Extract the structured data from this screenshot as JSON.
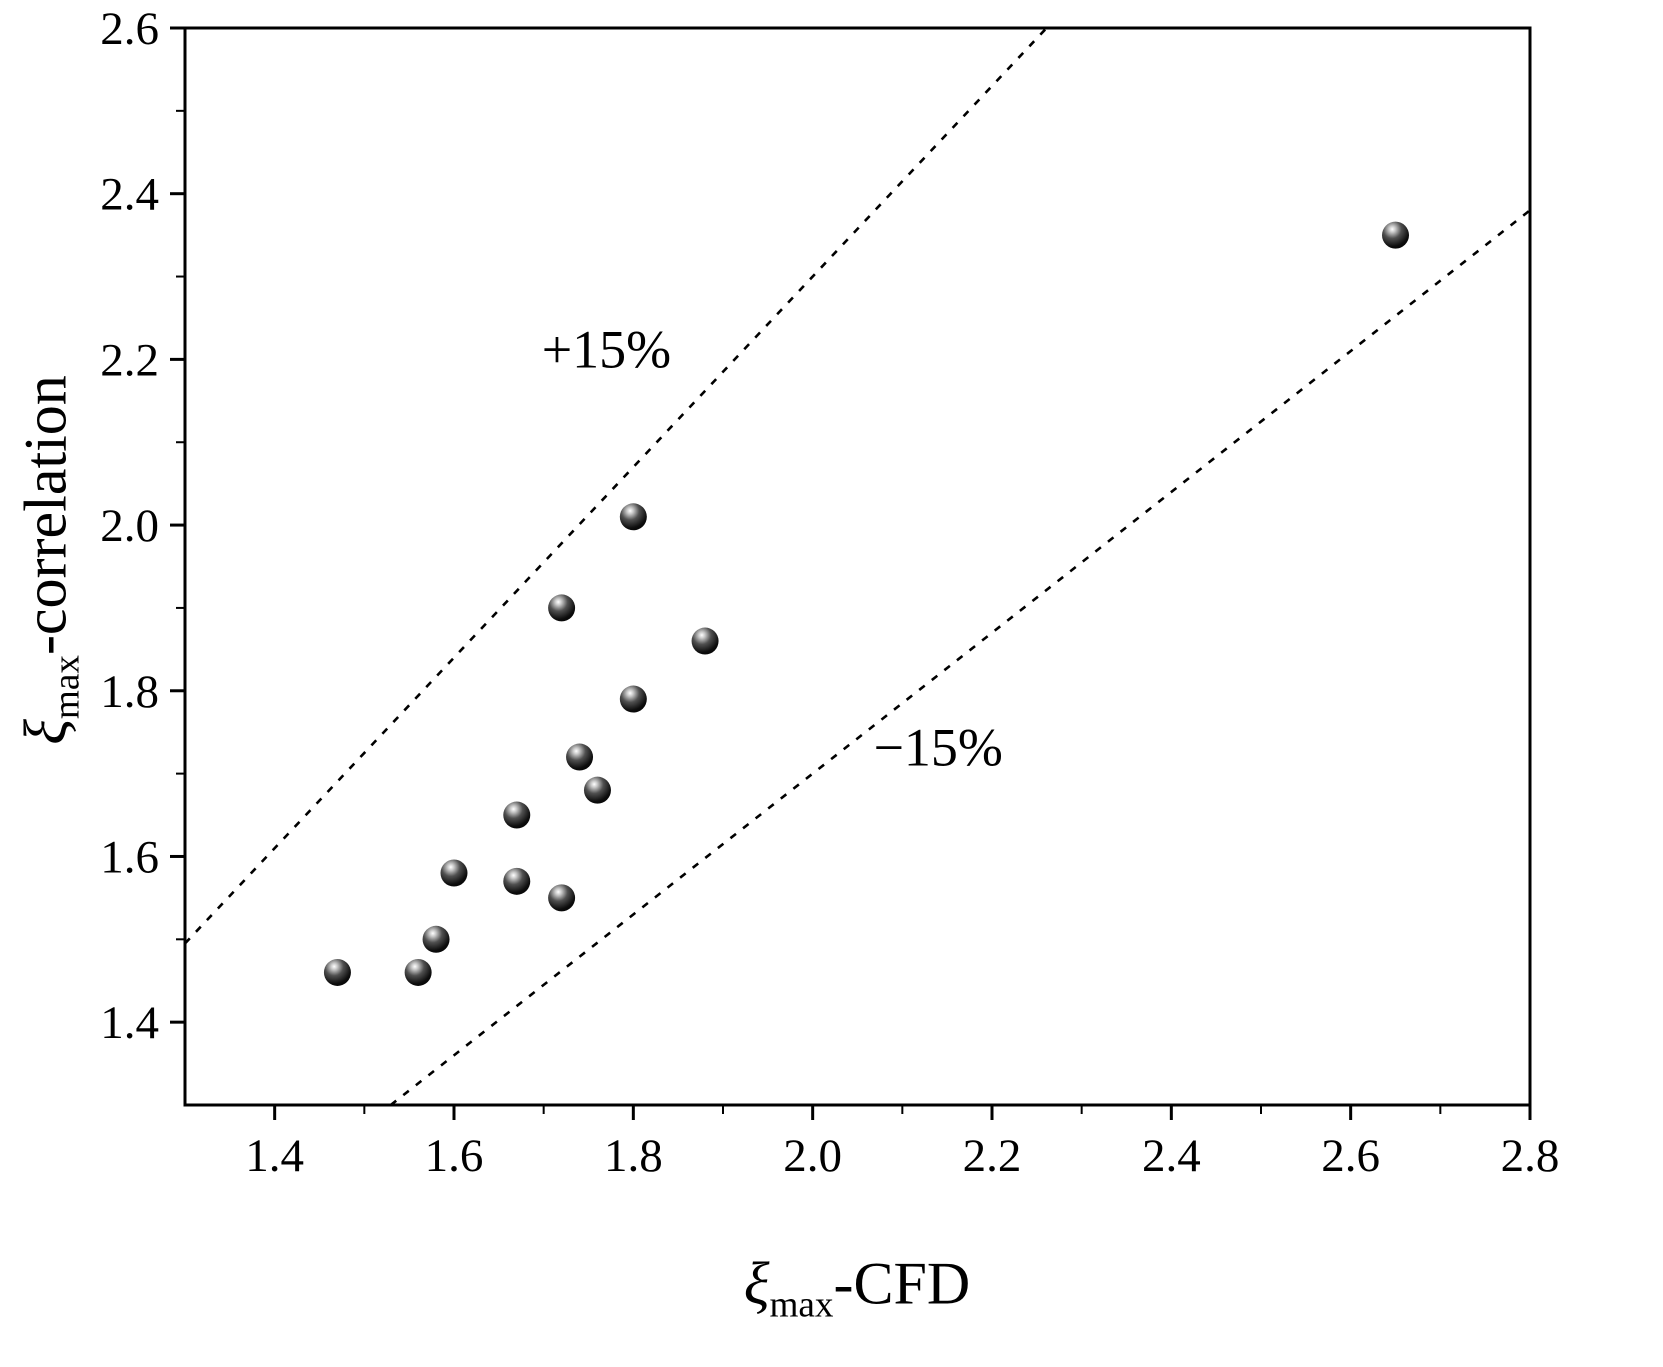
{
  "figure": {
    "background": "#ffffff",
    "ink": "#000000"
  },
  "axes": {
    "x_label": {
      "symbol": "ξ",
      "subscript": "max",
      "suffix": "-CFD"
    },
    "y_label": {
      "symbol": "ξ",
      "subscript": "max",
      "suffix": "-correlation"
    }
  },
  "chart_data": {
    "type": "scatter",
    "title": "",
    "xlabel": "ξmax-CFD",
    "ylabel": "ξmax-correlation",
    "xlim": [
      1.3,
      2.8
    ],
    "ylim": [
      1.3,
      2.6
    ],
    "x_ticks": [
      1.4,
      1.6,
      1.8,
      2.0,
      2.2,
      2.4,
      2.6,
      2.8
    ],
    "y_ticks": [
      1.4,
      1.6,
      1.8,
      2.0,
      2.2,
      2.4,
      2.6
    ],
    "grid": false,
    "legend": "none",
    "marker": {
      "shape": "sphere",
      "radius_px": 13.5,
      "color": "#000000"
    },
    "points": [
      {
        "x": 1.47,
        "y": 1.46
      },
      {
        "x": 1.56,
        "y": 1.46
      },
      {
        "x": 1.58,
        "y": 1.5
      },
      {
        "x": 1.6,
        "y": 1.58
      },
      {
        "x": 1.67,
        "y": 1.57
      },
      {
        "x": 1.72,
        "y": 1.55
      },
      {
        "x": 1.67,
        "y": 1.65
      },
      {
        "x": 1.76,
        "y": 1.68
      },
      {
        "x": 1.74,
        "y": 1.72
      },
      {
        "x": 1.8,
        "y": 1.79
      },
      {
        "x": 1.88,
        "y": 1.86
      },
      {
        "x": 1.72,
        "y": 1.9
      },
      {
        "x": 1.8,
        "y": 2.01
      },
      {
        "x": 2.65,
        "y": 2.35
      }
    ],
    "reference_lines": [
      {
        "label": "+15%",
        "slope": 1.15,
        "intercept": 0,
        "style": "dashed",
        "color": "#000000"
      },
      {
        "label": "−15%",
        "slope": 0.85,
        "intercept": 0,
        "style": "dashed",
        "color": "#000000"
      }
    ],
    "annotations": [
      {
        "text": "+15%",
        "x": 1.77,
        "y": 2.19
      },
      {
        "text": "−15%",
        "x": 2.14,
        "y": 1.71
      }
    ]
  }
}
